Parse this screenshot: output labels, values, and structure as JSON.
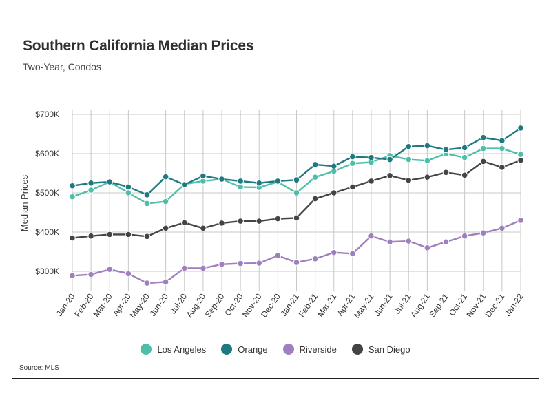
{
  "title": "Southern California Median Prices",
  "subtitle": "Two-Year, Condos",
  "source": "Source:  MLS",
  "chart_data": {
    "type": "line",
    "title": "Southern California Median Prices",
    "subtitle": "Two-Year, Condos",
    "xlabel": "",
    "ylabel": "Median Prices",
    "ylim": [
      230,
      720
    ],
    "yticks": [
      300,
      400,
      500,
      600,
      700
    ],
    "ytick_labels": [
      "$300K",
      "$400K",
      "$500K",
      "$600K",
      "$700K"
    ],
    "grid": true,
    "legend_position": "bottom",
    "categories": [
      "Jan-20",
      "Feb-20",
      "Mar-20",
      "Apr-20",
      "May-20",
      "Jun-20",
      "Jul-20",
      "Aug-20",
      "Sep-20",
      "Oct-20",
      "Nov-20",
      "Dec-20",
      "Jan-21",
      "Feb-21",
      "Mar-21",
      "Apr-21",
      "May-21",
      "Jun-21",
      "Jul-21",
      "Aug-21",
      "Sep-21",
      "Oct-21",
      "Nov-21",
      "Dec-21",
      "Jan-22"
    ],
    "series": [
      {
        "name": "Los Angeles",
        "color": "#4dbfa8",
        "values": [
          490,
          507,
          528,
          500,
          473,
          478,
          522,
          530,
          535,
          515,
          514,
          528,
          500,
          540,
          555,
          575,
          578,
          595,
          585,
          582,
          600,
          590,
          613,
          613,
          598
        ]
      },
      {
        "name": "Orange",
        "color": "#1e7a80",
        "values": [
          518,
          525,
          528,
          515,
          495,
          541,
          521,
          543,
          535,
          530,
          525,
          530,
          533,
          572,
          568,
          592,
          590,
          585,
          618,
          620,
          610,
          615,
          641,
          633,
          665
        ]
      },
      {
        "name": "Riverside",
        "color": "#a07fbf",
        "values": [
          289,
          292,
          305,
          294,
          270,
          273,
          308,
          308,
          318,
          320,
          321,
          340,
          323,
          332,
          348,
          345,
          390,
          375,
          377,
          360,
          375,
          390,
          398,
          410,
          430
        ]
      },
      {
        "name": "San Diego",
        "color": "#444444",
        "values": [
          385,
          390,
          394,
          394,
          389,
          410,
          424,
          410,
          423,
          428,
          428,
          434,
          436,
          485,
          500,
          515,
          530,
          544,
          532,
          540,
          552,
          545,
          580,
          565,
          583
        ]
      }
    ]
  }
}
